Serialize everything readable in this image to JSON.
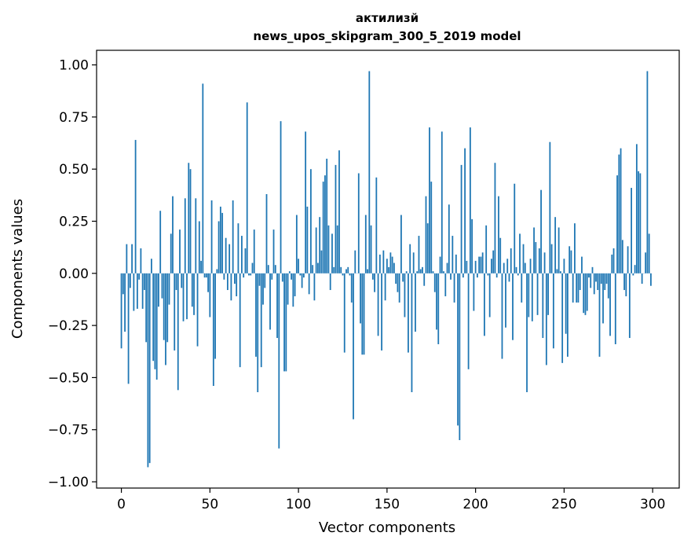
{
  "chart_data": {
    "type": "bar",
    "title_line1": "актилизй",
    "title_line2": "news_upos_skipgram_300_5_2019 model",
    "xlabel": "Vector components",
    "ylabel": "Components values",
    "xlim": [
      -14,
      315
    ],
    "ylim": [
      -1.03,
      1.07
    ],
    "xticks": [
      0,
      50,
      100,
      150,
      200,
      250,
      300
    ],
    "xtick_labels": [
      "0",
      "50",
      "100",
      "150",
      "200",
      "250",
      "300"
    ],
    "yticks": [
      -1.0,
      -0.75,
      -0.5,
      -0.25,
      0.0,
      0.25,
      0.5,
      0.75,
      1.0
    ],
    "ytick_labels": [
      "−1.00",
      "−0.75",
      "−0.50",
      "−0.25",
      "0.00",
      "0.25",
      "0.50",
      "0.75",
      "1.00"
    ],
    "bar_color": "#1f77b4",
    "values": [
      -0.36,
      -0.1,
      -0.28,
      0.14,
      -0.53,
      -0.07,
      0.14,
      -0.18,
      0.64,
      -0.17,
      -0.03,
      0.12,
      -0.17,
      -0.08,
      -0.33,
      -0.93,
      -0.91,
      0.07,
      -0.42,
      -0.46,
      -0.51,
      -0.16,
      0.3,
      -0.12,
      -0.32,
      -0.44,
      -0.33,
      -0.15,
      0.19,
      0.37,
      -0.37,
      -0.08,
      -0.56,
      0.21,
      -0.07,
      -0.23,
      0.36,
      -0.22,
      0.53,
      0.5,
      -0.16,
      -0.2,
      0.36,
      -0.35,
      0.25,
      0.06,
      0.91,
      -0.02,
      -0.02,
      -0.09,
      -0.21,
      0.35,
      -0.54,
      -0.41,
      0.02,
      0.25,
      0.32,
      0.29,
      -0.03,
      0.17,
      -0.08,
      0.14,
      -0.13,
      0.35,
      -0.05,
      -0.11,
      0.24,
      -0.45,
      0.18,
      -0.02,
      0.12,
      0.82,
      -0.01,
      -0.01,
      0.05,
      0.21,
      -0.4,
      -0.57,
      -0.06,
      -0.45,
      -0.15,
      -0.07,
      0.38,
      0.04,
      -0.27,
      -0.03,
      0.21,
      0.04,
      -0.31,
      -0.84,
      0.73,
      -0.04,
      -0.47,
      -0.47,
      -0.15,
      0.01,
      -0.03,
      -0.16,
      -0.11,
      0.28,
      0.07,
      -0.01,
      -0.07,
      -0.02,
      0.68,
      0.32,
      -0.1,
      0.5,
      0.04,
      -0.13,
      0.22,
      0.05,
      0.27,
      0.11,
      0.44,
      0.47,
      0.55,
      0.23,
      -0.08,
      0.19,
      0.03,
      0.52,
      0.23,
      0.59,
      0.03,
      -0.01,
      -0.38,
      0.02,
      0.03,
      -0.01,
      -0.14,
      -0.7,
      0.11,
      0.0,
      0.48,
      -0.24,
      -0.39,
      -0.39,
      0.28,
      0.02,
      0.97,
      0.23,
      -0.03,
      -0.09,
      0.46,
      -0.3,
      0.09,
      -0.37,
      0.11,
      -0.13,
      0.07,
      0.03,
      0.1,
      0.08,
      0.05,
      -0.05,
      -0.09,
      -0.14,
      0.28,
      -0.04,
      -0.21,
      0.01,
      -0.38,
      0.14,
      -0.57,
      0.1,
      -0.28,
      0.01,
      0.18,
      0.02,
      0.03,
      -0.06,
      0.37,
      0.24,
      0.7,
      0.44,
      0.01,
      -0.09,
      -0.27,
      -0.34,
      0.08,
      0.68,
      0.01,
      -0.11,
      0.05,
      0.33,
      -0.03,
      0.18,
      -0.14,
      0.09,
      -0.73,
      -0.8,
      0.52,
      -0.02,
      0.6,
      0.06,
      -0.46,
      0.7,
      0.26,
      -0.18,
      0.06,
      -0.02,
      0.08,
      0.08,
      0.1,
      -0.3,
      0.23,
      -0.01,
      -0.21,
      0.07,
      0.11,
      0.53,
      -0.02,
      0.37,
      0.17,
      -0.41,
      0.05,
      -0.26,
      0.07,
      -0.04,
      0.12,
      -0.32,
      0.43,
      0.03,
      -0.01,
      0.19,
      -0.14,
      0.14,
      0.05,
      -0.57,
      -0.21,
      0.07,
      -0.23,
      0.22,
      0.15,
      -0.2,
      0.12,
      0.4,
      -0.31,
      0.1,
      -0.44,
      -0.2,
      0.63,
      0.14,
      -0.36,
      0.27,
      0.02,
      0.22,
      0.01,
      -0.43,
      0.07,
      -0.29,
      -0.4,
      0.13,
      0.11,
      -0.14,
      0.24,
      -0.14,
      -0.14,
      -0.08,
      0.08,
      -0.19,
      -0.2,
      -0.18,
      -0.02,
      -0.07,
      0.03,
      -0.1,
      -0.04,
      -0.08,
      -0.4,
      -0.05,
      -0.24,
      -0.08,
      -0.05,
      -0.12,
      -0.3,
      0.09,
      0.12,
      -0.34,
      0.47,
      0.57,
      0.6,
      0.16,
      -0.08,
      -0.11,
      0.13,
      -0.31,
      0.41,
      -0.01,
      0.04,
      0.62,
      0.49,
      0.48,
      -0.05,
      0.0,
      0.1,
      0.97,
      0.19,
      -0.06
    ]
  }
}
